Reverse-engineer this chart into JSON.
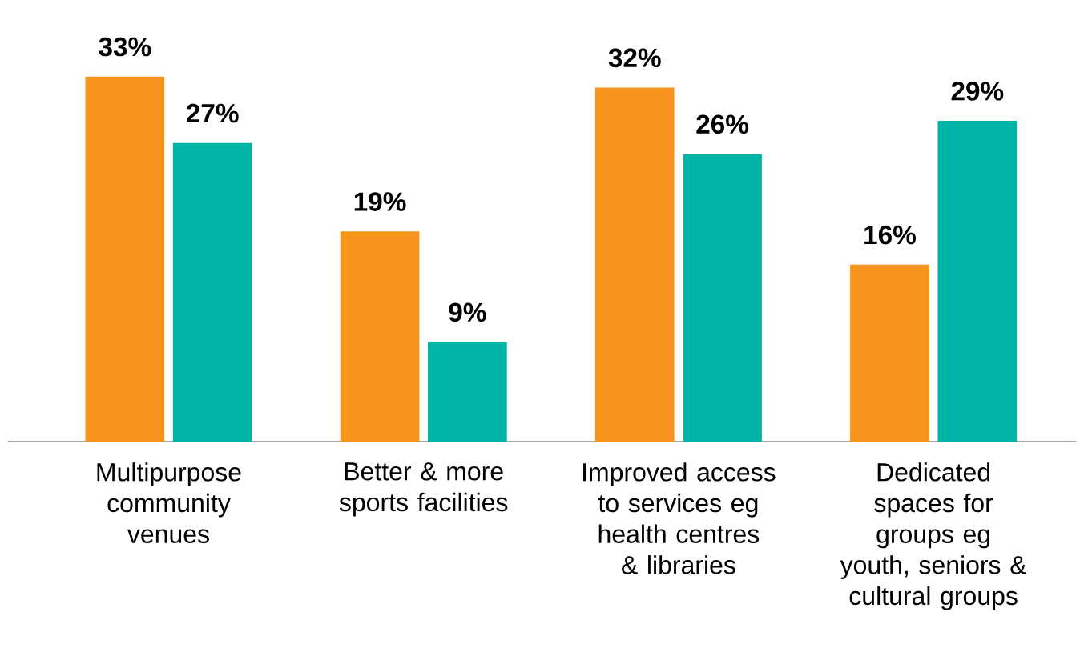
{
  "chart_data": {
    "type": "bar",
    "categories": [
      "Multipurpose community venues",
      "Better & more sports facilities",
      "Improved access to services eg health centres & libraries",
      "Dedicated spaces for groups eg youth, seniors & cultural groups"
    ],
    "series": [
      {
        "color": "#f7941d",
        "values": [
          33,
          19,
          32,
          16
        ],
        "value_labels": [
          "33%",
          "19%",
          "32%",
          "16%"
        ]
      },
      {
        "color": "#00b5a5",
        "values": [
          27,
          9,
          26,
          29
        ],
        "value_labels": [
          "27%",
          "9%",
          "26%",
          "29%"
        ]
      }
    ]
  }
}
